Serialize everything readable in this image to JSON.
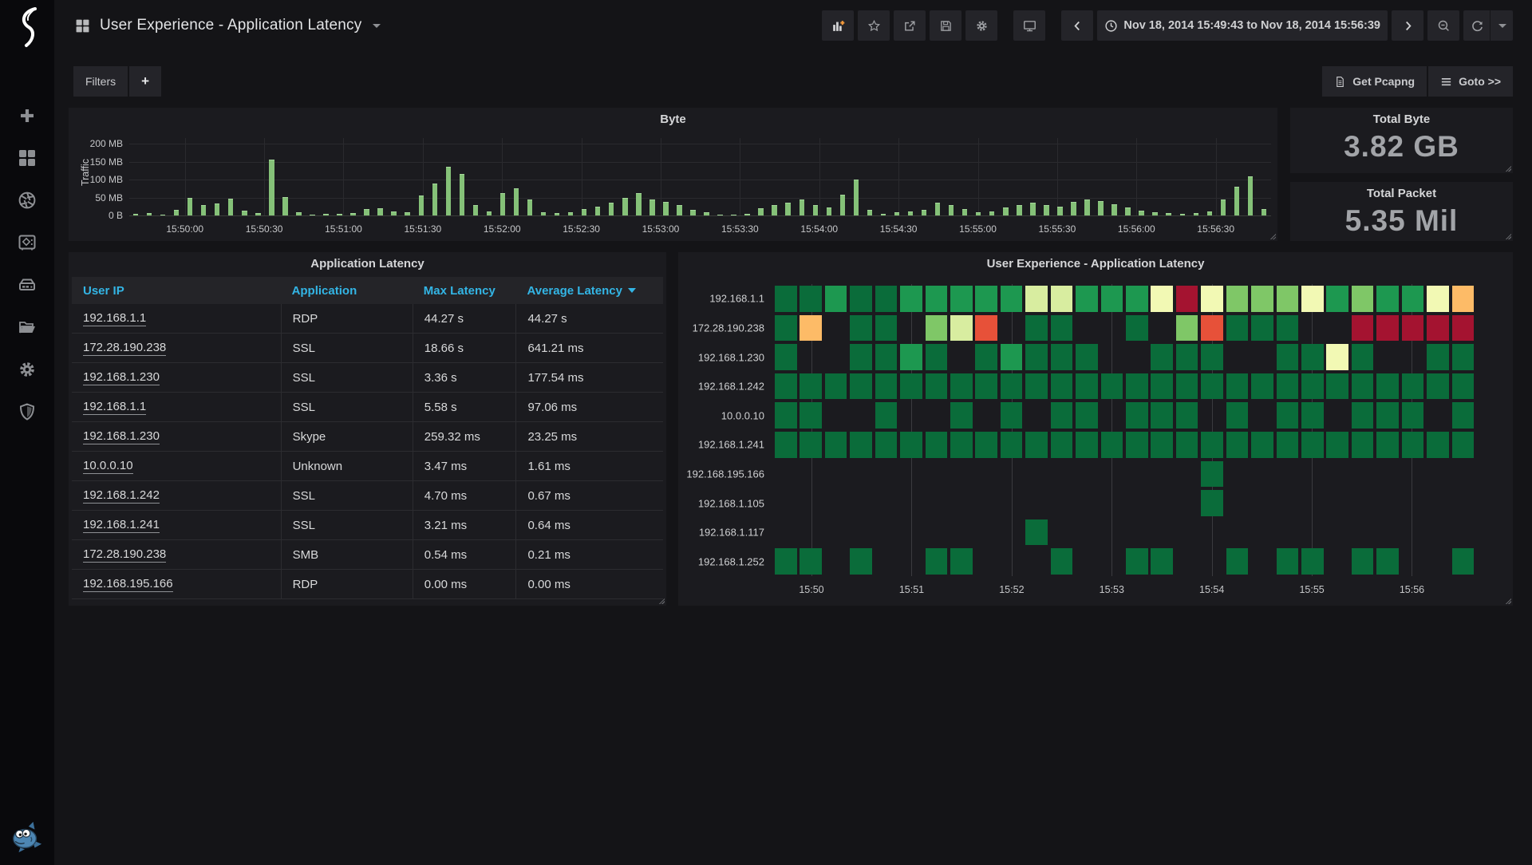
{
  "sidebar": {
    "icons": [
      {
        "name": "plus-icon"
      },
      {
        "name": "dashboards-icon"
      },
      {
        "name": "shutter-icon"
      },
      {
        "name": "safe-icon"
      },
      {
        "name": "storage-icon"
      },
      {
        "name": "folder-icon"
      },
      {
        "name": "gear-icon"
      },
      {
        "name": "shield-icon"
      }
    ],
    "mascot": "blue-fish"
  },
  "navbar": {
    "title": "User Experience - Application Latency",
    "time_range": "Nov 18, 2014 15:49:43 to Nov 18, 2014 15:56:39"
  },
  "submenu": {
    "filters": "Filters",
    "add": "+",
    "get_pcapng": "Get Pcapng",
    "goto": "Goto >>"
  },
  "stats": {
    "total_byte": {
      "title": "Total Byte",
      "value": "3.82 GB"
    },
    "total_packet": {
      "title": "Total Packet",
      "value": "5.35 Mil"
    }
  },
  "table": {
    "title": "Application Latency",
    "columns": [
      "User IP",
      "Application",
      "Max Latency",
      "Average Latency"
    ],
    "sorted_column_index": 3,
    "rows": [
      [
        "192.168.1.1",
        "RDP",
        "44.27 s",
        "44.27 s"
      ],
      [
        "172.28.190.238",
        "SSL",
        "18.66 s",
        "641.21 ms"
      ],
      [
        "192.168.1.230",
        "SSL",
        "3.36 s",
        "177.54 ms"
      ],
      [
        "192.168.1.1",
        "SSL",
        "5.58 s",
        "97.06 ms"
      ],
      [
        "192.168.1.230",
        "Skype",
        "259.32 ms",
        "23.25 ms"
      ],
      [
        "10.0.0.10",
        "Unknown",
        "3.47 ms",
        "1.61 ms"
      ],
      [
        "192.168.1.242",
        "SSL",
        "4.70 ms",
        "0.67 ms"
      ],
      [
        "192.168.1.241",
        "SSL",
        "3.21 ms",
        "0.64 ms"
      ],
      [
        "172.28.190.238",
        "SMB",
        "0.54 ms",
        "0.21 ms"
      ],
      [
        "192.168.195.166",
        "RDP",
        "0.00 ms",
        "0.00 ms"
      ]
    ]
  },
  "chart_data": [
    {
      "id": "byte",
      "type": "bar",
      "title": "Byte",
      "ylabel": "Traffic",
      "yticks": [
        {
          "v": 200,
          "label": "200 MB"
        },
        {
          "v": 150,
          "label": "150 MB"
        },
        {
          "v": 100,
          "label": "100 MB"
        },
        {
          "v": 50,
          "label": "50 MB"
        },
        {
          "v": 0,
          "label": "0 B"
        }
      ],
      "ymax_mb": 216,
      "bar_color": "#85c178",
      "xticks": [
        "15:50:00",
        "15:50:30",
        "15:51:00",
        "15:51:30",
        "15:52:00",
        "15:52:30",
        "15:53:00",
        "15:53:30",
        "15:54:00",
        "15:54:30",
        "15:55:00",
        "15:55:30",
        "15:56:00",
        "15:56:30"
      ],
      "values_mb": [
        4,
        6,
        3,
        15,
        48,
        28,
        33,
        46,
        14,
        6,
        155,
        52,
        8,
        2,
        5,
        4,
        6,
        18,
        21,
        12,
        8,
        55,
        88,
        135,
        115,
        28,
        12,
        62,
        75,
        45,
        8,
        6,
        10,
        18,
        25,
        35,
        48,
        62,
        45,
        38,
        28,
        16,
        8,
        3,
        2,
        4,
        20,
        30,
        36,
        45,
        28,
        22,
        58,
        100,
        15,
        5,
        8,
        12,
        15,
        35,
        30,
        18,
        10,
        12,
        22,
        30,
        35,
        28,
        25,
        38,
        45,
        40,
        32,
        22,
        14,
        8,
        6,
        5,
        6,
        12,
        45,
        80,
        110,
        18
      ]
    },
    {
      "id": "latency-heatmap",
      "type": "heatmap",
      "title": "User Experience - Application Latency",
      "rows": [
        "192.168.1.1",
        "172.28.190.238",
        "192.168.1.230",
        "192.168.1.242",
        "10.0.0.10",
        "192.168.1.241",
        "192.168.195.166",
        "192.168.1.105",
        "192.168.1.117",
        "192.168.1.252"
      ],
      "xticks": [
        "15:50",
        "15:51",
        "15:52",
        "15:53",
        "15:54",
        "15:55",
        "15:56"
      ],
      "gridline_pct": [
        5.34,
        19.6,
        33.85,
        48.1,
        62.35,
        76.6,
        90.85
      ],
      "palette": {
        "g1": "#0a6c3a",
        "g2": "#1d9850",
        "g3": "#7fc767",
        "g4": "#d8eda0",
        "y": "#f2f9b4",
        "o": "#fdbb67",
        "ro": "#e75139",
        "r": "#a41330"
      },
      "cells": [
        [
          "g1",
          "g1",
          "g2",
          "g1",
          "g1",
          "g2",
          "g2",
          "g2",
          "g2",
          "g2",
          "g4",
          "g4",
          "g2",
          "g2",
          "g2",
          "y",
          "r",
          "y",
          "g3",
          "g3",
          "g3",
          "y",
          "g2",
          "g3",
          "g2",
          "g2",
          "y",
          "o"
        ],
        [
          "g1",
          "o",
          "",
          "g1",
          "g1",
          "",
          "g3",
          "g4",
          "ro",
          "",
          "g1",
          "g1",
          "",
          "",
          "g1",
          "",
          "g3",
          "ro",
          "g1",
          "g1",
          "g1",
          "",
          "",
          "r",
          "r",
          "r",
          "r",
          "r"
        ],
        [
          "g1",
          "",
          "",
          "g1",
          "g1",
          "g2",
          "g1",
          "",
          "g1",
          "g2",
          "g1",
          "g1",
          "g1",
          "",
          "",
          "g1",
          "g1",
          "g1",
          "",
          "",
          "g1",
          "g1",
          "y",
          "g1",
          "",
          "",
          "g1",
          "g1"
        ],
        [
          "g1",
          "g1",
          "g1",
          "g1",
          "g1",
          "g1",
          "g1",
          "g1",
          "g1",
          "g1",
          "g1",
          "g1",
          "g1",
          "g1",
          "g1",
          "g1",
          "g1",
          "g1",
          "g1",
          "g1",
          "g1",
          "g1",
          "g1",
          "g1",
          "g1",
          "g1",
          "g1",
          "g1"
        ],
        [
          "g1",
          "g1",
          "",
          "",
          "g1",
          "",
          "",
          "g1",
          "",
          "g1",
          "",
          "g1",
          "g1",
          "",
          "g1",
          "g1",
          "g1",
          "",
          "g1",
          "",
          "g1",
          "g1",
          "",
          "g1",
          "g1",
          "g1",
          "",
          "g1"
        ],
        [
          "g1",
          "g1",
          "g1",
          "g1",
          "g1",
          "g1",
          "g1",
          "g1",
          "g1",
          "g1",
          "g1",
          "g1",
          "g1",
          "g1",
          "g1",
          "g1",
          "g1",
          "g1",
          "g1",
          "g1",
          "g1",
          "g1",
          "g1",
          "g1",
          "g1",
          "g1",
          "g1",
          "g1"
        ],
        [
          "",
          "",
          "",
          "",
          "",
          "",
          "",
          "",
          "",
          "",
          "",
          "",
          "",
          "",
          "",
          "",
          "",
          "g1",
          "",
          "",
          "",
          "",
          "",
          "",
          "",
          "",
          "",
          ""
        ],
        [
          "",
          "",
          "",
          "",
          "",
          "",
          "",
          "",
          "",
          "",
          "",
          "",
          "",
          "",
          "",
          "",
          "",
          "g1",
          "",
          "",
          "",
          "",
          "",
          "",
          "",
          "",
          "",
          ""
        ],
        [
          "",
          "",
          "",
          "",
          "",
          "",
          "",
          "",
          "",
          "",
          "g1",
          "",
          "",
          "",
          "",
          "",
          "",
          "",
          "",
          "",
          "",
          "",
          "",
          "",
          "",
          "",
          "",
          ""
        ],
        [
          "g1",
          "g1",
          "",
          "g1",
          "",
          "",
          "g1",
          "g1",
          "",
          "",
          "",
          "g1",
          "",
          "",
          "g1",
          "g1",
          "",
          "",
          "g1",
          "",
          "g1",
          "g1",
          "",
          "g1",
          "g1",
          "",
          "",
          "g1"
        ]
      ]
    }
  ]
}
